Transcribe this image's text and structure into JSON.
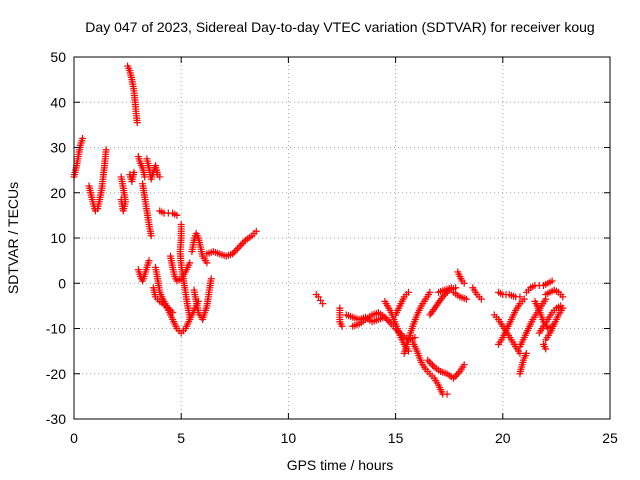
{
  "chart_data": {
    "type": "scatter",
    "title": "Day 047 of 2023, Sidereal Day-to-day VTEC variation (SDTVAR) for receiver koug",
    "xlabel": "GPS time / hours",
    "ylabel": "SDTVAR / TECUs",
    "xlim": [
      0,
      25
    ],
    "ylim": [
      -30,
      50
    ],
    "xticks": [
      0,
      5,
      10,
      15,
      20,
      25
    ],
    "yticks": [
      -30,
      -20,
      -10,
      0,
      10,
      20,
      30,
      40,
      50
    ],
    "xtick_labels": [
      "0",
      "5",
      "10",
      "15",
      "20",
      "25"
    ],
    "ytick_labels": [
      "-30",
      "-20",
      "-10",
      "0",
      "10",
      "20",
      "30",
      "40",
      "50"
    ],
    "grid": true,
    "marker": "+",
    "color": "#ff0000",
    "tracks": [
      [
        [
          0.0,
          23.5
        ],
        [
          0.1,
          25.5
        ],
        [
          0.2,
          28.0
        ],
        [
          0.3,
          30.5
        ],
        [
          0.4,
          32.0
        ]
      ],
      [
        [
          0.7,
          21.5
        ],
        [
          0.8,
          19.5
        ],
        [
          0.9,
          17.5
        ],
        [
          1.0,
          16.0
        ],
        [
          1.1,
          16.5
        ],
        [
          1.2,
          18.5
        ],
        [
          1.3,
          21.0
        ],
        [
          1.4,
          25.0
        ],
        [
          1.5,
          29.5
        ]
      ],
      [
        [
          2.2,
          23.5
        ],
        [
          2.3,
          21.0
        ],
        [
          2.4,
          18.0
        ],
        [
          2.3,
          16.0
        ],
        [
          2.2,
          18.5
        ]
      ],
      [
        [
          2.5,
          48.0
        ],
        [
          2.6,
          47.0
        ],
        [
          2.7,
          45.0
        ],
        [
          2.8,
          42.5
        ],
        [
          2.85,
          40.0
        ],
        [
          2.9,
          37.5
        ],
        [
          2.95,
          35.5
        ]
      ],
      [
        [
          2.6,
          24.0
        ],
        [
          2.7,
          22.5
        ],
        [
          2.8,
          24.5
        ]
      ],
      [
        [
          3.0,
          28.0
        ],
        [
          3.1,
          26.5
        ],
        [
          3.2,
          25.5
        ],
        [
          3.3,
          23.5
        ]
      ],
      [
        [
          3.4,
          27.5
        ],
        [
          3.5,
          25.5
        ],
        [
          3.6,
          23.0
        ],
        [
          3.7,
          24.5
        ],
        [
          3.8,
          26.0
        ],
        [
          3.9,
          24.0
        ],
        [
          4.0,
          23.5
        ]
      ],
      [
        [
          3.2,
          22.0
        ],
        [
          3.3,
          19.0
        ],
        [
          3.4,
          16.0
        ],
        [
          3.5,
          13.0
        ],
        [
          3.6,
          10.5
        ]
      ],
      [
        [
          4.0,
          16.0
        ],
        [
          4.2,
          15.5
        ],
        [
          4.4,
          15.5
        ],
        [
          4.6,
          15.5
        ],
        [
          4.8,
          15.0
        ]
      ],
      [
        [
          3.0,
          3.0
        ],
        [
          3.1,
          1.5
        ],
        [
          3.2,
          0.5
        ],
        [
          3.3,
          2.0
        ],
        [
          3.5,
          5.0
        ]
      ],
      [
        [
          3.7,
          -1.0
        ],
        [
          3.8,
          -3.0
        ],
        [
          4.0,
          -4.0
        ],
        [
          4.3,
          -5.0
        ],
        [
          4.6,
          -6.5
        ]
      ],
      [
        [
          3.8,
          3.5
        ],
        [
          3.9,
          1.0
        ],
        [
          4.0,
          -2.0
        ],
        [
          4.2,
          -4.0
        ],
        [
          4.4,
          -6.0
        ],
        [
          4.6,
          -8.0
        ],
        [
          4.8,
          -10.0
        ],
        [
          5.0,
          -11.0
        ],
        [
          5.2,
          -10.0
        ],
        [
          5.4,
          -8.0
        ],
        [
          5.6,
          -6.0
        ],
        [
          5.8,
          -4.0
        ]
      ],
      [
        [
          4.5,
          6.0
        ],
        [
          4.6,
          3.5
        ],
        [
          4.7,
          1.5
        ],
        [
          4.8,
          0.5
        ],
        [
          5.0,
          1.0
        ],
        [
          5.2,
          2.5
        ],
        [
          5.4,
          4.5
        ]
      ],
      [
        [
          5.0,
          13.0
        ],
        [
          5.0,
          10.0
        ],
        [
          4.95,
          7.0
        ],
        [
          5.0,
          4.0
        ],
        [
          5.1,
          1.0
        ],
        [
          5.2,
          -2.0
        ],
        [
          5.3,
          -5.0
        ],
        [
          5.4,
          -7.5
        ]
      ],
      [
        [
          5.6,
          -1.5
        ],
        [
          5.7,
          -4.0
        ],
        [
          5.8,
          -6.5
        ],
        [
          6.0,
          -8.0
        ],
        [
          6.2,
          -5.0
        ],
        [
          6.3,
          -2.0
        ],
        [
          6.4,
          1.0
        ]
      ],
      [
        [
          5.5,
          7.0
        ],
        [
          5.6,
          9.5
        ],
        [
          5.7,
          11.0
        ],
        [
          5.8,
          10.0
        ],
        [
          5.9,
          8.0
        ],
        [
          6.0,
          6.0
        ],
        [
          6.2,
          4.5
        ]
      ],
      [
        [
          6.2,
          6.5
        ],
        [
          6.5,
          7.0
        ],
        [
          6.8,
          6.5
        ],
        [
          7.1,
          6.0
        ],
        [
          7.4,
          6.5
        ],
        [
          7.7,
          8.0
        ],
        [
          8.0,
          9.5
        ],
        [
          8.3,
          10.5
        ],
        [
          8.5,
          11.5
        ]
      ],
      [
        [
          11.3,
          -2.5
        ],
        [
          11.4,
          -3.0
        ],
        [
          11.5,
          -3.8
        ],
        [
          11.6,
          -4.5
        ]
      ],
      [
        [
          12.4,
          -5.5
        ],
        [
          12.4,
          -6.5
        ],
        [
          12.4,
          -7.5
        ],
        [
          12.4,
          -8.5
        ],
        [
          12.5,
          -9.5
        ]
      ],
      [
        [
          12.7,
          -7.0
        ],
        [
          13.0,
          -7.5
        ],
        [
          13.3,
          -8.0
        ],
        [
          13.6,
          -7.5
        ],
        [
          13.9,
          -8.5
        ],
        [
          14.2,
          -8.0
        ],
        [
          14.5,
          -7.5
        ]
      ],
      [
        [
          13.0,
          -9.5
        ],
        [
          13.3,
          -9.0
        ],
        [
          13.6,
          -8.0
        ],
        [
          13.9,
          -7.0
        ],
        [
          14.2,
          -6.5
        ],
        [
          14.5,
          -7.5
        ],
        [
          14.8,
          -9.0
        ],
        [
          15.0,
          -10.0
        ],
        [
          15.3,
          -11.5
        ],
        [
          15.6,
          -12.5
        ],
        [
          15.9,
          -12.0
        ]
      ],
      [
        [
          14.5,
          -4.0
        ],
        [
          14.8,
          -6.5
        ],
        [
          15.0,
          -9.0
        ],
        [
          15.2,
          -11.5
        ],
        [
          15.4,
          -13.5
        ],
        [
          15.6,
          -15.0
        ]
      ],
      [
        [
          15.0,
          -7.0
        ],
        [
          15.2,
          -5.0
        ],
        [
          15.4,
          -3.0
        ],
        [
          15.6,
          -2.0
        ]
      ],
      [
        [
          15.4,
          -15.5
        ],
        [
          15.6,
          -12.5
        ],
        [
          15.8,
          -9.5
        ],
        [
          16.0,
          -7.0
        ],
        [
          16.2,
          -5.0
        ],
        [
          16.4,
          -3.5
        ],
        [
          16.6,
          -2.0
        ]
      ],
      [
        [
          15.8,
          -13.0
        ],
        [
          16.0,
          -15.0
        ],
        [
          16.2,
          -17.5
        ],
        [
          16.4,
          -19.0
        ],
        [
          16.6,
          -20.0
        ],
        [
          16.8,
          -21.0
        ],
        [
          17.0,
          -22.5
        ],
        [
          17.2,
          -24.5
        ],
        [
          17.4,
          -24.5
        ]
      ],
      [
        [
          16.5,
          -17.0
        ],
        [
          16.8,
          -18.5
        ],
        [
          17.1,
          -19.5
        ],
        [
          17.4,
          -20.0
        ],
        [
          17.7,
          -21.0
        ],
        [
          18.0,
          -19.5
        ],
        [
          18.2,
          -18.0
        ]
      ],
      [
        [
          16.6,
          -7.0
        ],
        [
          16.9,
          -5.0
        ],
        [
          17.2,
          -3.0
        ],
        [
          17.5,
          -1.5
        ],
        [
          17.8,
          -1.0
        ]
      ],
      [
        [
          17.0,
          -2.0
        ],
        [
          17.3,
          -1.5
        ],
        [
          17.6,
          -1.0
        ]
      ],
      [
        [
          17.9,
          2.5
        ],
        [
          18.0,
          1.5
        ],
        [
          18.1,
          0.5
        ],
        [
          18.2,
          0.0
        ]
      ],
      [
        [
          17.7,
          -2.0
        ],
        [
          18.0,
          -3.0
        ],
        [
          18.3,
          -3.5
        ]
      ],
      [
        [
          18.6,
          -1.0
        ],
        [
          18.8,
          -2.5
        ],
        [
          19.0,
          -3.5
        ]
      ],
      [
        [
          19.8,
          -2.0
        ],
        [
          20.0,
          -2.5
        ],
        [
          20.3,
          -2.5
        ],
        [
          20.6,
          -3.0
        ],
        [
          20.8,
          -3.0
        ]
      ],
      [
        [
          19.6,
          -7.0
        ],
        [
          19.8,
          -8.0
        ],
        [
          20.0,
          -9.5
        ],
        [
          20.2,
          -11.0
        ],
        [
          20.4,
          -12.5
        ],
        [
          20.6,
          -14.0
        ],
        [
          20.8,
          -15.5
        ]
      ],
      [
        [
          19.8,
          -13.5
        ],
        [
          20.0,
          -12.0
        ],
        [
          20.2,
          -10.0
        ],
        [
          20.4,
          -8.0
        ],
        [
          20.6,
          -6.0
        ],
        [
          20.8,
          -4.5
        ],
        [
          21.0,
          -3.5
        ]
      ],
      [
        [
          20.8,
          -14.0
        ],
        [
          21.0,
          -12.0
        ],
        [
          21.2,
          -10.0
        ],
        [
          21.4,
          -8.0
        ],
        [
          21.6,
          -6.5
        ],
        [
          21.8,
          -5.0
        ],
        [
          22.0,
          -3.5
        ]
      ],
      [
        [
          20.8,
          -20.0
        ],
        [
          20.9,
          -18.0
        ],
        [
          21.0,
          -16.5
        ],
        [
          21.1,
          -15.5
        ]
      ],
      [
        [
          21.1,
          -2.0
        ],
        [
          21.3,
          -1.0
        ],
        [
          21.5,
          -0.5
        ],
        [
          21.7,
          -0.5
        ],
        [
          21.9,
          -0.5
        ],
        [
          22.1,
          0.0
        ],
        [
          22.3,
          0.5
        ]
      ],
      [
        [
          21.5,
          -4.0
        ],
        [
          21.7,
          -6.0
        ],
        [
          21.9,
          -8.5
        ],
        [
          22.1,
          -10.0
        ],
        [
          22.3,
          -9.5
        ]
      ],
      [
        [
          21.7,
          -11.0
        ],
        [
          21.9,
          -9.5
        ],
        [
          22.1,
          -8.0
        ],
        [
          22.3,
          -6.5
        ],
        [
          22.5,
          -5.5
        ],
        [
          22.7,
          -5.0
        ]
      ],
      [
        [
          22.0,
          -12.5
        ],
        [
          22.2,
          -11.0
        ],
        [
          22.4,
          -9.0
        ],
        [
          22.6,
          -7.0
        ],
        [
          22.8,
          -5.5
        ]
      ],
      [
        [
          22.0,
          -14.5
        ],
        [
          21.9,
          -13.5
        ]
      ],
      [
        [
          22.0,
          -2.5
        ],
        [
          22.2,
          -2.0
        ],
        [
          22.4,
          -1.5
        ],
        [
          22.6,
          -2.0
        ],
        [
          22.8,
          -3.0
        ]
      ]
    ]
  }
}
